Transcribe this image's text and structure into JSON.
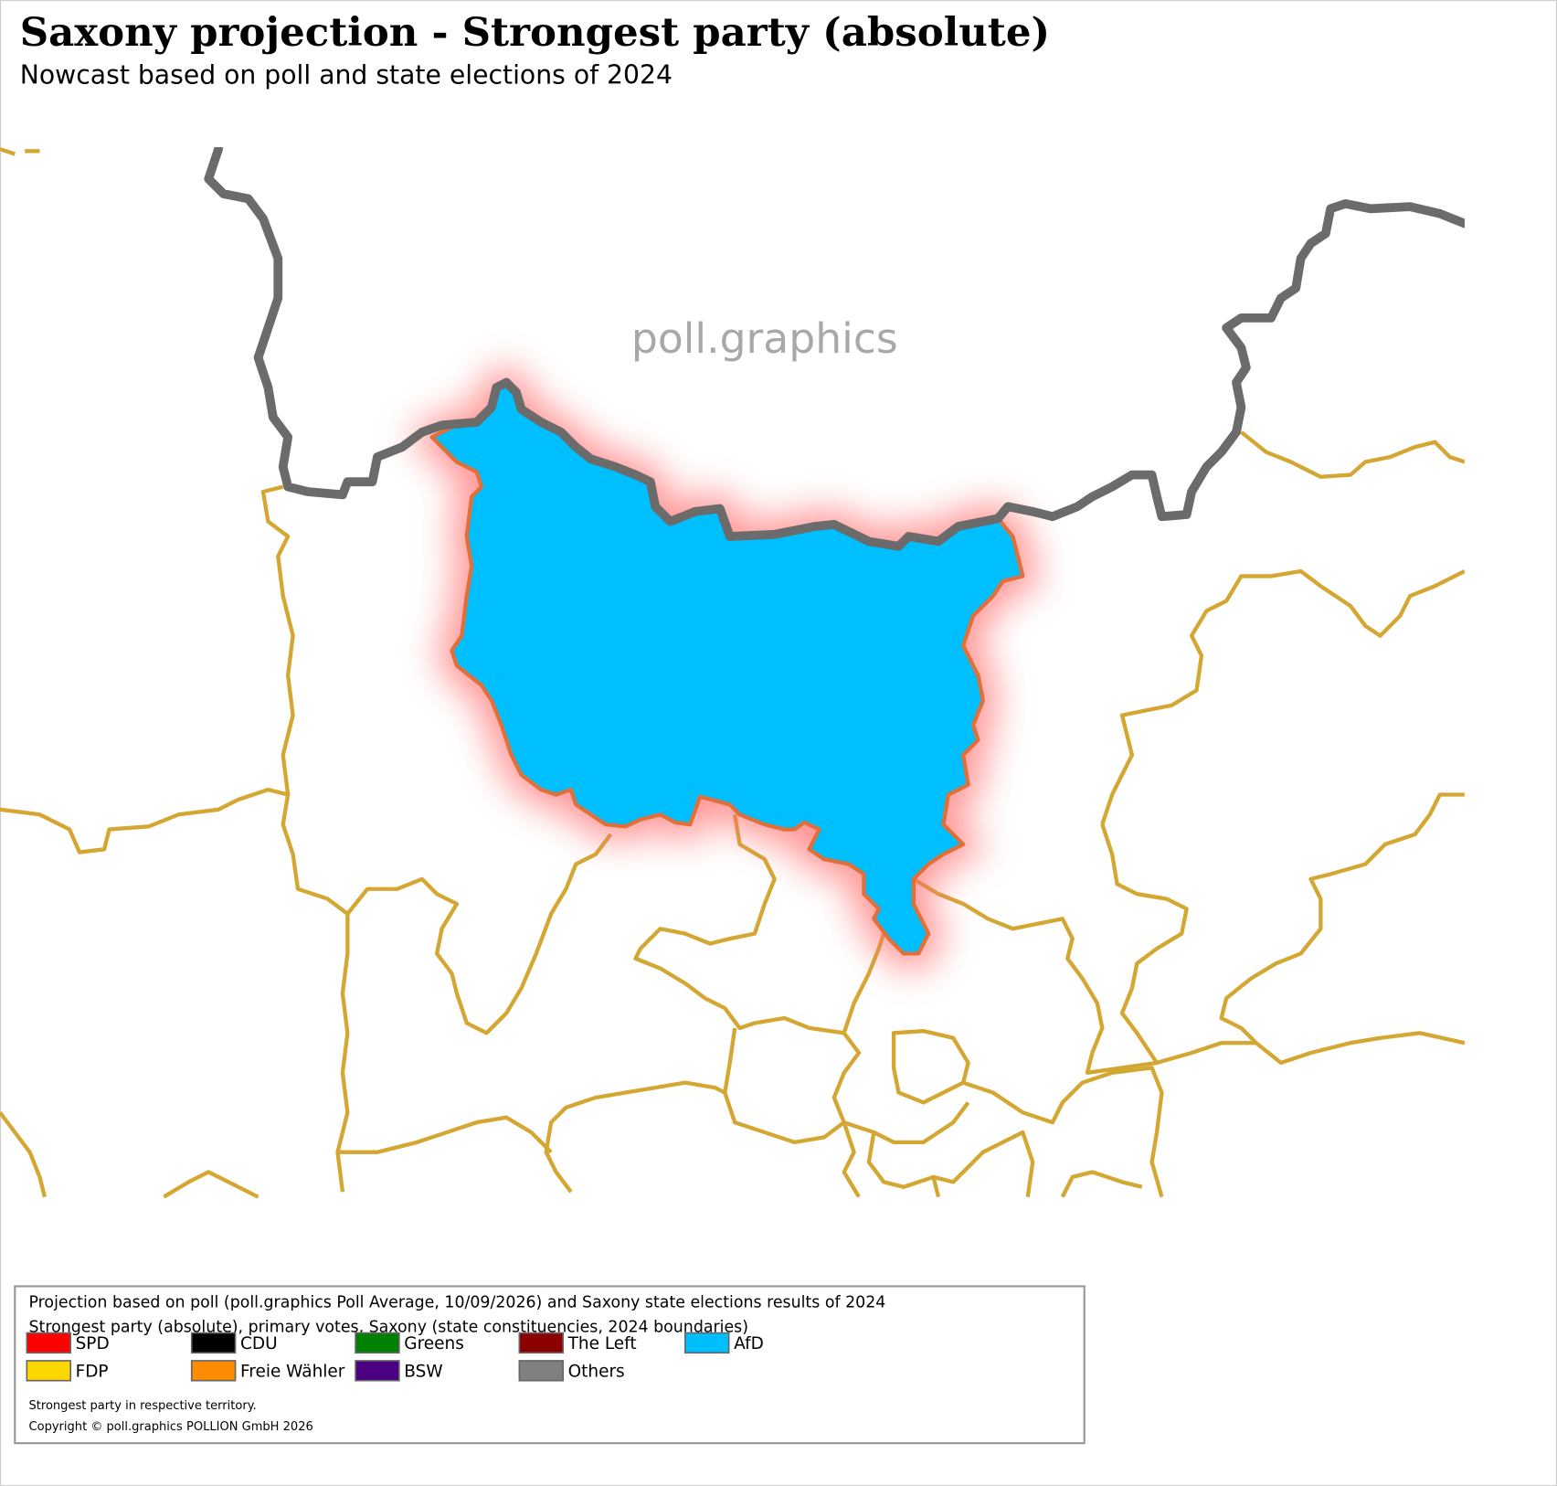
{
  "header": {
    "title": "Saxony projection - Strongest party (absolute)",
    "subtitle": "Nowcast based on poll and state elections of 2024"
  },
  "watermark": "poll.graphics",
  "legend": {
    "lines": [
      "Projection based on poll (poll.graphics Poll Average, 10/09/2026) and Saxony state elections results of 2024",
      "Strongest party (absolute), primary votes, Saxony (state constituencies, 2024 boundaries)"
    ],
    "entries": [
      {
        "label": "SPD",
        "color": "#ff0000"
      },
      {
        "label": "CDU",
        "color": "#000000"
      },
      {
        "label": "Greens",
        "color": "#008000"
      },
      {
        "label": "The Left",
        "color": "#8b0000"
      },
      {
        "label": "AfD",
        "color": "#00bfff"
      },
      {
        "label": "FDP",
        "color": "#ffd700"
      },
      {
        "label": "Freie Wähler",
        "color": "#ff8c00"
      },
      {
        "label": "BSW",
        "color": "#4b0082"
      },
      {
        "label": "Others",
        "color": "#808080"
      }
    ],
    "notes": [
      "Strongest party in respective territory.",
      "Copyright © poll.graphics POLLION GmbH 2026"
    ]
  }
}
